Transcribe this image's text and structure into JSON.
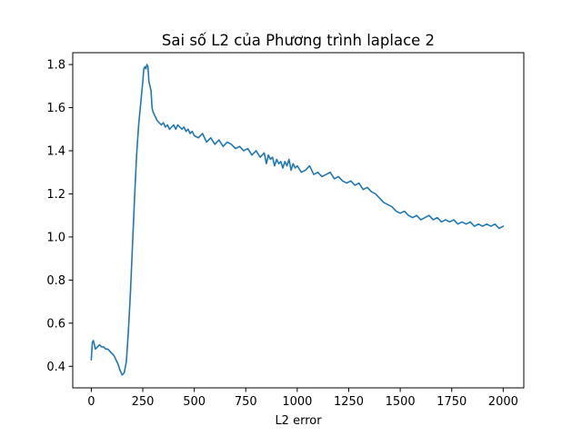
{
  "chart_data": {
    "type": "line",
    "title": "Sai số L2 của Phương trình laplace 2",
    "xlabel": "L2 error",
    "ylabel": "",
    "xlim": [
      -90,
      2100
    ],
    "ylim": [
      0.3,
      1.855
    ],
    "xticks": [
      0,
      250,
      500,
      750,
      1000,
      1250,
      1500,
      1750,
      2000
    ],
    "xtick_labels": [
      "0",
      "250",
      "500",
      "750",
      "1000",
      "1250",
      "1500",
      "1750",
      "2000"
    ],
    "yticks": [
      0.4,
      0.6,
      0.8,
      1.0,
      1.2,
      1.4,
      1.6,
      1.8
    ],
    "ytick_labels": [
      "0.4",
      "0.6",
      "0.8",
      "1.0",
      "1.2",
      "1.4",
      "1.6",
      "1.8"
    ],
    "grid": false,
    "series": [
      {
        "color": "#1f77b4",
        "x": [
          0,
          5,
          10,
          15,
          20,
          30,
          40,
          50,
          60,
          70,
          80,
          90,
          100,
          110,
          120,
          130,
          140,
          150,
          160,
          170,
          180,
          190,
          200,
          210,
          220,
          230,
          240,
          250,
          255,
          260,
          265,
          270,
          275,
          280,
          285,
          290,
          295,
          300,
          310,
          320,
          330,
          340,
          350,
          360,
          370,
          380,
          390,
          400,
          410,
          420,
          430,
          440,
          450,
          460,
          470,
          480,
          490,
          500,
          520,
          540,
          560,
          580,
          600,
          620,
          640,
          660,
          680,
          700,
          720,
          740,
          760,
          780,
          800,
          820,
          840,
          850,
          860,
          870,
          880,
          890,
          900,
          910,
          920,
          930,
          940,
          950,
          960,
          970,
          980,
          990,
          1000,
          1020,
          1040,
          1060,
          1080,
          1100,
          1120,
          1140,
          1160,
          1180,
          1200,
          1220,
          1240,
          1260,
          1280,
          1300,
          1320,
          1340,
          1360,
          1380,
          1400,
          1420,
          1440,
          1460,
          1480,
          1500,
          1520,
          1540,
          1560,
          1580,
          1600,
          1620,
          1640,
          1660,
          1680,
          1700,
          1720,
          1740,
          1760,
          1780,
          1800,
          1820,
          1840,
          1860,
          1880,
          1900,
          1920,
          1940,
          1960,
          1980,
          2000
        ],
        "y": [
          0.43,
          0.51,
          0.52,
          0.5,
          0.48,
          0.49,
          0.5,
          0.49,
          0.49,
          0.48,
          0.48,
          0.47,
          0.46,
          0.45,
          0.43,
          0.41,
          0.38,
          0.36,
          0.37,
          0.42,
          0.56,
          0.74,
          0.96,
          1.18,
          1.38,
          1.52,
          1.62,
          1.72,
          1.78,
          1.79,
          1.78,
          1.8,
          1.79,
          1.72,
          1.7,
          1.68,
          1.6,
          1.58,
          1.56,
          1.54,
          1.53,
          1.52,
          1.53,
          1.51,
          1.52,
          1.5,
          1.51,
          1.52,
          1.5,
          1.52,
          1.51,
          1.5,
          1.51,
          1.49,
          1.5,
          1.48,
          1.49,
          1.47,
          1.46,
          1.48,
          1.44,
          1.46,
          1.43,
          1.45,
          1.42,
          1.44,
          1.43,
          1.41,
          1.42,
          1.4,
          1.41,
          1.38,
          1.4,
          1.37,
          1.39,
          1.34,
          1.38,
          1.36,
          1.37,
          1.33,
          1.36,
          1.34,
          1.35,
          1.32,
          1.35,
          1.33,
          1.36,
          1.31,
          1.34,
          1.32,
          1.33,
          1.3,
          1.31,
          1.33,
          1.29,
          1.3,
          1.28,
          1.29,
          1.3,
          1.27,
          1.28,
          1.26,
          1.25,
          1.26,
          1.24,
          1.25,
          1.22,
          1.23,
          1.21,
          1.2,
          1.18,
          1.16,
          1.15,
          1.14,
          1.12,
          1.11,
          1.12,
          1.1,
          1.09,
          1.1,
          1.08,
          1.09,
          1.1,
          1.08,
          1.09,
          1.07,
          1.08,
          1.07,
          1.08,
          1.06,
          1.07,
          1.06,
          1.07,
          1.05,
          1.06,
          1.05,
          1.06,
          1.05,
          1.06,
          1.04,
          1.05
        ]
      }
    ]
  }
}
